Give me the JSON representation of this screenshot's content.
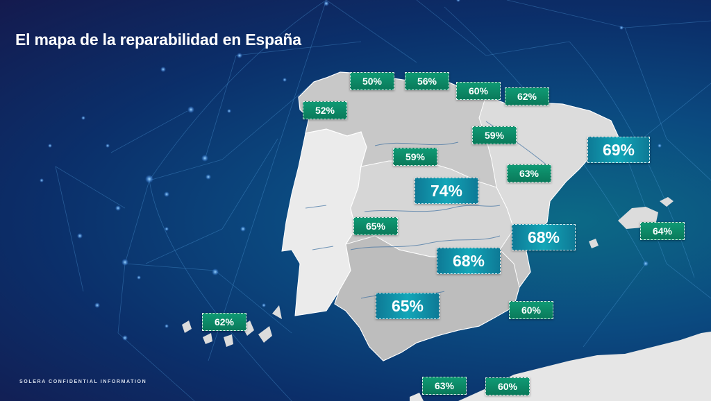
{
  "title": "El mapa de la reparabilidad en España",
  "footer": "SOLERA CONFIDENTIAL INFORMATION",
  "colors": {
    "background_dark": "#141a4e",
    "background_teal": "#0c6a86",
    "small_label_green": "#0a7a5a",
    "large_label_teal": "#12a6b8",
    "land_light": "#e6e6e6",
    "land_grey": "#c4c4c4"
  },
  "labels": [
    {
      "id": "asturias",
      "value": "50%",
      "size": "small"
    },
    {
      "id": "cantabria",
      "value": "56%",
      "size": "small"
    },
    {
      "id": "pais-vasco",
      "value": "60%",
      "size": "small"
    },
    {
      "id": "navarra",
      "value": "62%",
      "size": "small"
    },
    {
      "id": "galicia",
      "value": "52%",
      "size": "small"
    },
    {
      "id": "la-rioja",
      "value": "59%",
      "size": "small"
    },
    {
      "id": "cataluna",
      "value": "69%",
      "size": "large"
    },
    {
      "id": "castilla-y-leon",
      "value": "59%",
      "size": "small"
    },
    {
      "id": "aragon",
      "value": "63%",
      "size": "small"
    },
    {
      "id": "madrid",
      "value": "74%",
      "size": "large"
    },
    {
      "id": "extremadura",
      "value": "65%",
      "size": "small"
    },
    {
      "id": "comunidad-valenciana",
      "value": "68%",
      "size": "large"
    },
    {
      "id": "baleares",
      "value": "64%",
      "size": "small"
    },
    {
      "id": "castilla-la-mancha",
      "value": "68%",
      "size": "large"
    },
    {
      "id": "andalucia",
      "value": "65%",
      "size": "large"
    },
    {
      "id": "murcia",
      "value": "60%",
      "size": "small"
    },
    {
      "id": "canarias",
      "value": "62%",
      "size": "small"
    },
    {
      "id": "ceuta",
      "value": "63%",
      "size": "small"
    },
    {
      "id": "melilla",
      "value": "60%",
      "size": "small"
    }
  ]
}
